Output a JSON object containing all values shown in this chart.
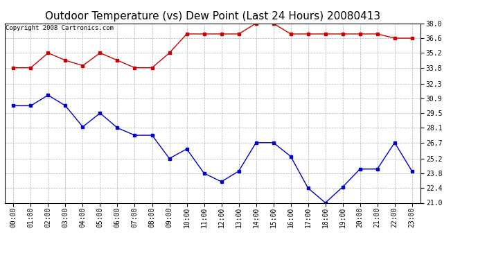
{
  "title": "Outdoor Temperature (vs) Dew Point (Last 24 Hours) 20080413",
  "copyright_text": "Copyright 2008 Cartronics.com",
  "x_labels": [
    "00:00",
    "01:00",
    "02:00",
    "03:00",
    "04:00",
    "05:00",
    "06:00",
    "07:00",
    "08:00",
    "09:00",
    "10:00",
    "11:00",
    "12:00",
    "13:00",
    "14:00",
    "15:00",
    "16:00",
    "17:00",
    "18:00",
    "19:00",
    "20:00",
    "21:00",
    "22:00",
    "23:00"
  ],
  "temp_data": [
    30.2,
    30.2,
    31.2,
    30.2,
    28.2,
    29.5,
    28.1,
    27.4,
    27.4,
    25.2,
    26.1,
    23.8,
    23.0,
    24.0,
    26.7,
    26.7,
    25.4,
    22.4,
    21.0,
    22.5,
    24.2,
    24.2,
    26.7,
    24.0
  ],
  "dew_data": [
    33.8,
    33.8,
    35.2,
    34.5,
    34.0,
    35.2,
    34.5,
    33.8,
    33.8,
    35.2,
    37.0,
    37.0,
    37.0,
    37.0,
    38.0,
    38.0,
    37.0,
    37.0,
    37.0,
    37.0,
    37.0,
    37.0,
    36.6,
    36.6
  ],
  "temp_color": "#0000cc",
  "dew_color": "#cc0000",
  "bg_color": "#ffffff",
  "plot_bg_color": "#ffffff",
  "grid_color": "#aaaaaa",
  "ylim_min": 21.0,
  "ylim_max": 38.0,
  "yticks": [
    21.0,
    22.4,
    23.8,
    25.2,
    26.7,
    28.1,
    29.5,
    30.9,
    32.3,
    33.8,
    35.2,
    36.6,
    38.0
  ],
  "title_fontsize": 11,
  "tick_fontsize": 7,
  "copyright_fontsize": 6.5,
  "marker_size": 3.0,
  "line_width": 1.0
}
